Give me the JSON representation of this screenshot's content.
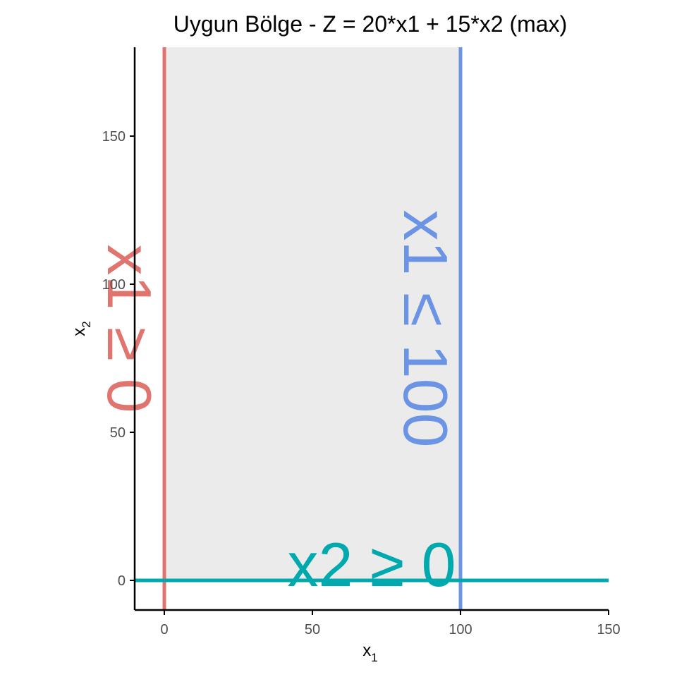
{
  "chart_data": {
    "type": "line",
    "title": "Uygun Bölge - Z = 20*x1 + 15*x2 (max)",
    "xlabel": "x",
    "xlabel_sub": "1",
    "ylabel": "x",
    "ylabel_sub": "2",
    "xlim": [
      -10,
      150
    ],
    "ylim": [
      -10,
      180
    ],
    "x_ticks": [
      0,
      50,
      100,
      150
    ],
    "y_ticks": [
      0,
      50,
      100,
      150
    ],
    "grid": false,
    "feasible_region": {
      "x": [
        0,
        100
      ],
      "y": [
        0,
        180
      ],
      "color": "#ebebeb"
    },
    "constraints": [
      {
        "label": "x1 ≥ 0",
        "orientation": "vertical",
        "value": 0,
        "color": "#e07570",
        "label_at": 85
      },
      {
        "label": "x1 ≤ 100",
        "orientation": "vertical",
        "value": 100,
        "color": "#6c94e4",
        "label_at": 85
      },
      {
        "label": "x2 ≥ 0",
        "orientation": "horizontal",
        "value": 0,
        "color": "#00a9ad",
        "label_at": 70
      }
    ]
  }
}
